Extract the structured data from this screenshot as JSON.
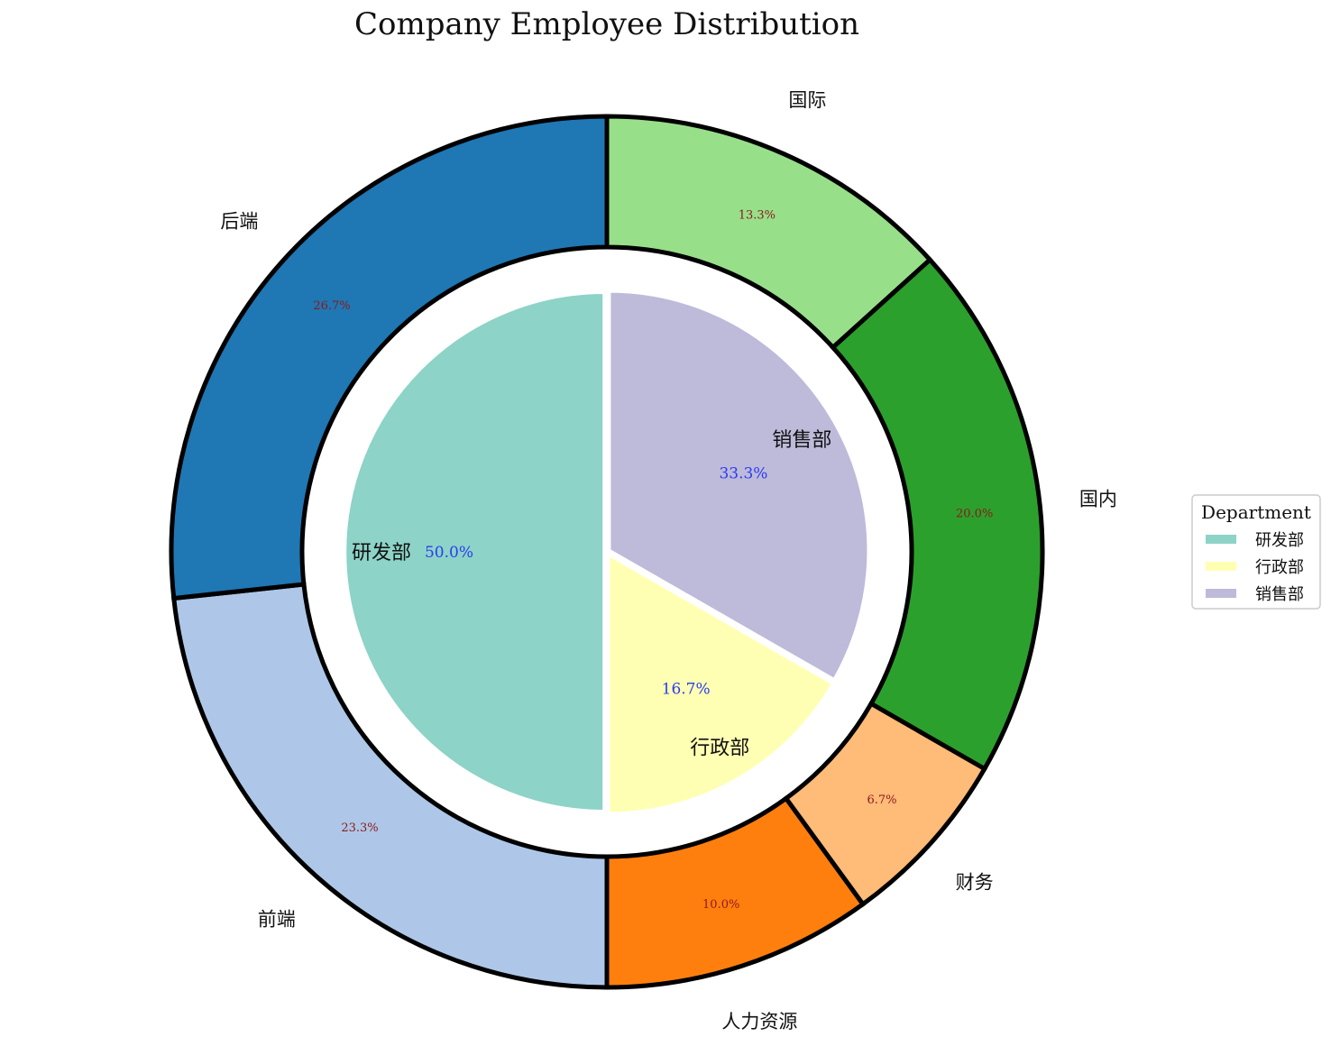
{
  "chart_data": {
    "type": "pie",
    "title": "Company Employee Distribution",
    "inner": {
      "categories": [
        "研发部",
        "行政部",
        "销售部"
      ],
      "percent_labels": [
        "50.0%",
        "16.7%",
        "33.3%"
      ],
      "values": [
        50.0,
        16.7,
        33.3
      ],
      "colors": [
        "#8dd3c7",
        "#ffffb3",
        "#bebada"
      ]
    },
    "outer": {
      "categories": [
        "国际",
        "国内",
        "财务",
        "人力资源",
        "前端",
        "后端"
      ],
      "percent_labels": [
        "13.3%",
        "20.0%",
        "6.7%",
        "10.0%",
        "23.3%",
        "26.7%"
      ],
      "values": [
        13.3,
        20.0,
        6.7,
        10.0,
        23.3,
        26.7
      ],
      "colors": [
        "#98df8a",
        "#2ca02c",
        "#ffbb78",
        "#ff7f0e",
        "#aec7e8",
        "#1f77b4"
      ]
    },
    "legend": {
      "title": "Department",
      "entries": [
        "研发部",
        "行政部",
        "销售部"
      ],
      "placement": "center-right"
    }
  }
}
